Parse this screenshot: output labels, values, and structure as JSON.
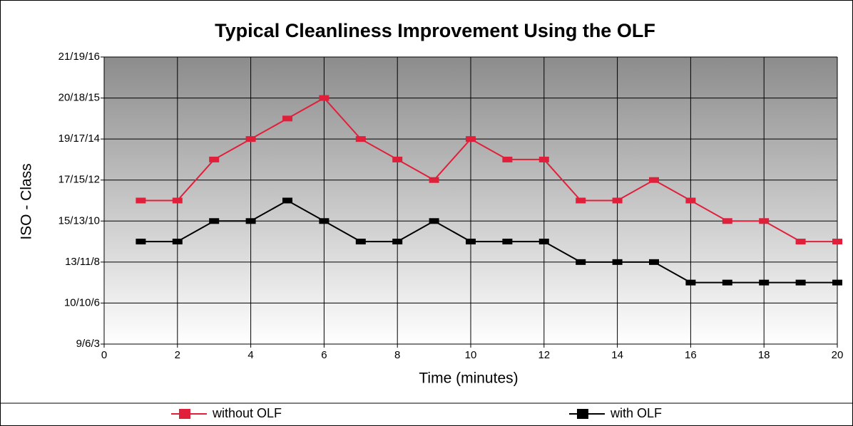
{
  "chart_data": {
    "type": "line",
    "title": "Typical Cleanliness Improvement Using the OLF",
    "x_label": "Time (minutes)",
    "y_label": "ISO - Class",
    "x": [
      1,
      2,
      3,
      4,
      5,
      6,
      7,
      8,
      9,
      10,
      11,
      12,
      13,
      14,
      15,
      16,
      17,
      18,
      19,
      20
    ],
    "series": [
      {
        "name": "without OLF",
        "color": "#e0203a",
        "values": [
          3.5,
          3.5,
          4.5,
          5,
          5.5,
          6,
          5,
          4.5,
          4,
          5,
          4.5,
          4.5,
          3.5,
          3.5,
          4,
          3.5,
          3,
          3,
          2.5,
          2.5
        ]
      },
      {
        "name": "with OLF",
        "color": "#000000",
        "values": [
          2.5,
          2.5,
          3,
          3,
          3.5,
          3,
          2.5,
          2.5,
          3,
          2.5,
          2.5,
          2.5,
          2,
          2,
          2,
          1.5,
          1.5,
          1.5,
          1.5,
          1.5
        ]
      }
    ],
    "xlim": [
      0,
      20
    ],
    "xticks": [
      0,
      2,
      4,
      6,
      8,
      10,
      12,
      14,
      16,
      18,
      20
    ],
    "ylim": [
      0,
      7
    ],
    "yticks": [
      {
        "value": 0,
        "label": "9/6/3"
      },
      {
        "value": 1,
        "label": "10/10/6"
      },
      {
        "value": 2,
        "label": "13/11/8"
      },
      {
        "value": 3,
        "label": "15/13/10"
      },
      {
        "value": 4,
        "label": "17/15/12"
      },
      {
        "value": 5,
        "label": "19/17/14"
      },
      {
        "value": 6,
        "label": "20/18/15"
      },
      {
        "value": 7,
        "label": "21/19/16"
      }
    ],
    "grid": true,
    "legend": "bottom"
  }
}
